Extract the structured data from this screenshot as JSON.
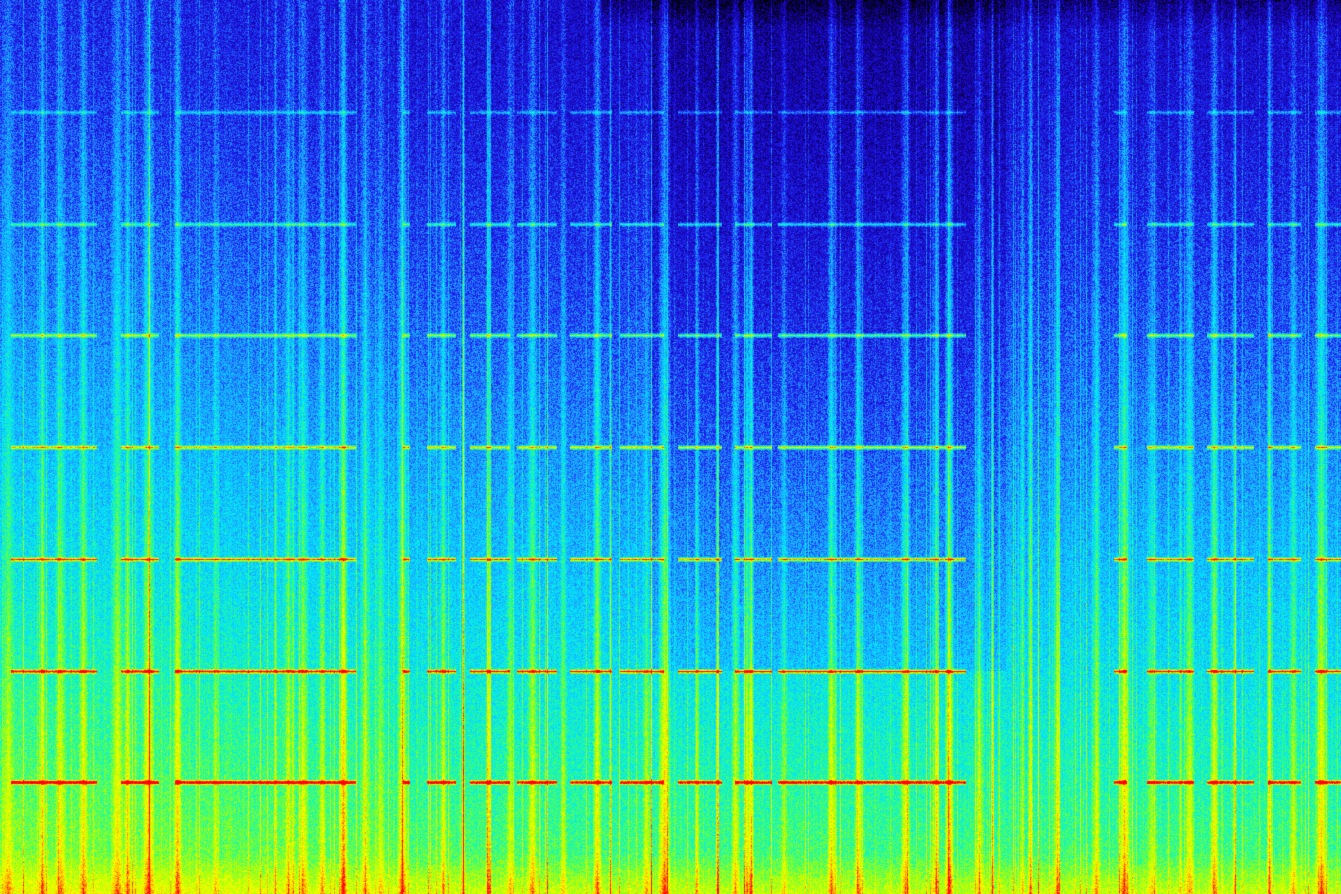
{
  "image": {
    "kind": "spectrogram",
    "axes_labeled": false,
    "colormap": [
      "#000000",
      "#1400a0",
      "#1e1ef0",
      "#1e9bff",
      "#00e6ff",
      "#32ff78",
      "#b4ff00",
      "#ffff00",
      "#ff9600",
      "#ff0000"
    ],
    "harmonic_lines": {
      "count": 7,
      "gap_columns_fraction": [
        [
          0.0,
          0.008
        ],
        [
          0.072,
          0.09
        ],
        [
          0.118,
          0.13
        ],
        [
          0.265,
          0.3
        ],
        [
          0.305,
          0.318
        ],
        [
          0.34,
          0.35
        ],
        [
          0.38,
          0.385
        ],
        [
          0.415,
          0.425
        ],
        [
          0.456,
          0.462
        ],
        [
          0.495,
          0.505
        ],
        [
          0.538,
          0.548
        ],
        [
          0.575,
          0.58
        ],
        [
          0.72,
          0.76
        ],
        [
          0.745,
          0.755
        ],
        [
          0.76,
          0.795
        ],
        [
          0.79,
          0.83
        ],
        [
          0.84,
          0.855
        ],
        [
          0.89,
          0.9
        ],
        [
          0.935,
          0.945
        ],
        [
          0.97,
          0.98
        ]
      ]
    },
    "broadband_bursts": [
      0.006,
      0.031,
      0.045,
      0.062,
      0.087,
      0.095,
      0.11,
      0.132,
      0.16,
      0.205,
      0.215,
      0.226,
      0.24,
      0.256,
      0.272,
      0.283,
      0.3,
      0.33,
      0.345,
      0.364,
      0.38,
      0.397,
      0.42,
      0.445,
      0.455,
      0.482,
      0.495,
      0.52,
      0.535,
      0.548,
      0.557,
      0.56,
      0.585,
      0.62,
      0.64,
      0.675,
      0.698,
      0.708,
      0.73,
      0.74,
      0.762,
      0.768,
      0.788,
      0.817,
      0.838,
      0.858,
      0.88,
      0.887,
      0.905,
      0.92,
      0.946,
      0.964,
      0.985
    ]
  }
}
